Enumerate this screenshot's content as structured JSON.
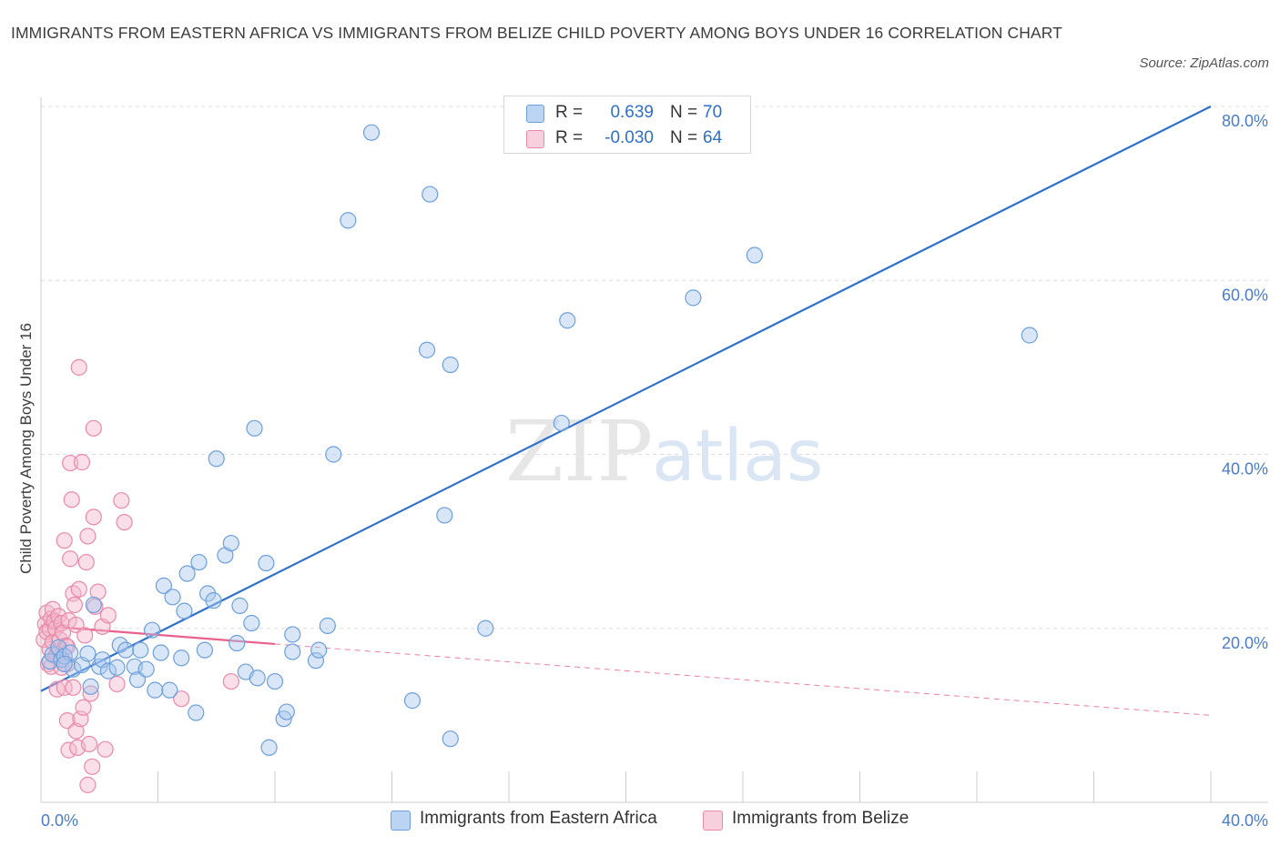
{
  "title": "IMMIGRANTS FROM EASTERN AFRICA VS IMMIGRANTS FROM BELIZE CHILD POVERTY AMONG BOYS UNDER 16 CORRELATION CHART",
  "source": "Source: ZipAtlas.com",
  "watermark": {
    "zip": "ZIP",
    "atlas": "atlas"
  },
  "legend": {
    "series1": {
      "r_label": "R =",
      "r_value": "0.639",
      "n_label": "N =",
      "n_value": "70"
    },
    "series2": {
      "r_label": "R =",
      "r_value": "-0.030",
      "n_label": "N =",
      "n_value": "64"
    }
  },
  "colors": {
    "blue_fill": "#a9c8f0",
    "blue_stroke": "#6e9fd9",
    "blue_line": "#2f72cc",
    "pink_fill": "#f5b8cb",
    "pink_stroke": "#e88aa7",
    "pink_line": "#e8608b",
    "grid": "#d9dde5",
    "axis": "#cccccc"
  },
  "chart_data": {
    "type": "scatter",
    "title": "IMMIGRANTS FROM EASTERN AFRICA VS IMMIGRANTS FROM BELIZE CHILD POVERTY AMONG BOYS UNDER 16 CORRELATION CHART",
    "xlabel": "",
    "ylabel": "Child Poverty Among Boys Under 16",
    "xlim": [
      0,
      40
    ],
    "ylim": [
      0,
      80
    ],
    "x_tick_labels": [
      "0.0%",
      "40.0%"
    ],
    "y_ticks": [
      20,
      40,
      60,
      80
    ],
    "y_tick_labels": [
      "20.0%",
      "40.0%",
      "60.0%",
      "80.0%"
    ],
    "grid": true,
    "legend_position": "bottom-center",
    "series": [
      {
        "name": "Immigrants from Eastern Africa",
        "color": "#a9c8f0",
        "r": 0.639,
        "n": 70,
        "trend": {
          "x": [
            0,
            40
          ],
          "y": [
            12.8,
            80.0
          ],
          "dashed_extension": false
        },
        "points": [
          [
            0.3,
            16.2
          ],
          [
            0.4,
            17.0
          ],
          [
            0.6,
            17.8
          ],
          [
            0.7,
            16.4
          ],
          [
            0.8,
            16.8
          ],
          [
            1.0,
            17.2
          ],
          [
            1.1,
            15.3
          ],
          [
            1.4,
            15.8
          ],
          [
            1.6,
            17.1
          ],
          [
            1.7,
            13.3
          ],
          [
            1.8,
            22.7
          ],
          [
            2.0,
            15.6
          ],
          [
            2.1,
            16.4
          ],
          [
            2.3,
            15.1
          ],
          [
            2.6,
            15.5
          ],
          [
            2.7,
            18.1
          ],
          [
            2.9,
            17.5
          ],
          [
            3.2,
            15.6
          ],
          [
            3.3,
            14.1
          ],
          [
            3.4,
            17.5
          ],
          [
            3.6,
            15.3
          ],
          [
            3.8,
            19.8
          ],
          [
            3.9,
            12.9
          ],
          [
            4.1,
            17.2
          ],
          [
            4.2,
            24.9
          ],
          [
            4.4,
            12.9
          ],
          [
            4.5,
            23.6
          ],
          [
            4.8,
            16.6
          ],
          [
            4.9,
            22.0
          ],
          [
            5.0,
            26.3
          ],
          [
            5.3,
            10.3
          ],
          [
            5.4,
            27.6
          ],
          [
            5.6,
            17.5
          ],
          [
            5.7,
            24.0
          ],
          [
            5.9,
            23.2
          ],
          [
            6.0,
            39.5
          ],
          [
            6.3,
            28.4
          ],
          [
            6.5,
            29.8
          ],
          [
            6.7,
            18.3
          ],
          [
            6.8,
            22.6
          ],
          [
            7.0,
            15.0
          ],
          [
            7.2,
            20.6
          ],
          [
            7.3,
            43.0
          ],
          [
            7.4,
            14.3
          ],
          [
            7.7,
            27.5
          ],
          [
            7.8,
            6.3
          ],
          [
            8.0,
            13.9
          ],
          [
            8.3,
            9.6
          ],
          [
            8.4,
            10.4
          ],
          [
            8.6,
            17.3
          ],
          [
            8.6,
            19.3
          ],
          [
            9.4,
            16.3
          ],
          [
            9.5,
            17.5
          ],
          [
            9.8,
            20.3
          ],
          [
            10.0,
            40.0
          ],
          [
            10.5,
            66.9
          ],
          [
            11.3,
            77.0
          ],
          [
            12.7,
            11.7
          ],
          [
            13.2,
            52.0
          ],
          [
            13.3,
            69.9
          ],
          [
            14.0,
            50.3
          ],
          [
            14.0,
            7.3
          ],
          [
            13.8,
            33.0
          ],
          [
            15.2,
            20.0
          ],
          [
            17.8,
            43.6
          ],
          [
            18.0,
            55.4
          ],
          [
            22.3,
            58.0
          ],
          [
            24.4,
            62.9
          ],
          [
            33.8,
            53.7
          ],
          [
            0.8,
            15.9
          ]
        ]
      },
      {
        "name": "Immigrants from Belize",
        "color": "#f5b8cb",
        "r": -0.03,
        "n": 64,
        "trend": {
          "x": [
            0,
            8.0
          ],
          "y": [
            20.3,
            18.2
          ],
          "dashed_extension": {
            "x": [
              8.0,
              40
            ],
            "y": [
              18.2,
              10.0
            ]
          }
        },
        "points": [
          [
            0.1,
            18.7
          ],
          [
            0.15,
            20.5
          ],
          [
            0.2,
            19.6
          ],
          [
            0.2,
            21.8
          ],
          [
            0.25,
            15.9
          ],
          [
            0.3,
            17.6
          ],
          [
            0.3,
            19.9
          ],
          [
            0.35,
            21.1
          ],
          [
            0.4,
            18.4
          ],
          [
            0.4,
            22.2
          ],
          [
            0.45,
            20.8
          ],
          [
            0.5,
            16.8
          ],
          [
            0.5,
            20.0
          ],
          [
            0.55,
            13.0
          ],
          [
            0.6,
            21.4
          ],
          [
            0.6,
            17.4
          ],
          [
            0.65,
            18.7
          ],
          [
            0.7,
            16.6
          ],
          [
            0.7,
            20.6
          ],
          [
            0.75,
            19.5
          ],
          [
            0.8,
            13.2
          ],
          [
            0.8,
            30.1
          ],
          [
            0.85,
            18.0
          ],
          [
            0.9,
            15.9
          ],
          [
            0.9,
            9.4
          ],
          [
            0.95,
            20.9
          ],
          [
            0.95,
            6.0
          ],
          [
            1.0,
            28.0
          ],
          [
            1.0,
            39.0
          ],
          [
            1.05,
            34.8
          ],
          [
            1.1,
            13.2
          ],
          [
            1.1,
            24.0
          ],
          [
            1.15,
            22.7
          ],
          [
            1.2,
            8.2
          ],
          [
            1.2,
            20.4
          ],
          [
            1.25,
            6.3
          ],
          [
            1.3,
            24.5
          ],
          [
            1.3,
            50.0
          ],
          [
            1.35,
            9.6
          ],
          [
            1.4,
            39.1
          ],
          [
            1.45,
            10.9
          ],
          [
            1.5,
            19.2
          ],
          [
            1.55,
            27.6
          ],
          [
            1.6,
            30.6
          ],
          [
            1.6,
            2.0
          ],
          [
            1.65,
            6.7
          ],
          [
            1.7,
            12.5
          ],
          [
            1.75,
            4.1
          ],
          [
            1.8,
            32.8
          ],
          [
            1.8,
            43.0
          ],
          [
            1.85,
            22.5
          ],
          [
            1.95,
            24.2
          ],
          [
            2.1,
            20.2
          ],
          [
            2.2,
            6.1
          ],
          [
            2.3,
            21.5
          ],
          [
            2.6,
            13.6
          ],
          [
            2.75,
            34.7
          ],
          [
            2.85,
            32.2
          ],
          [
            4.8,
            11.9
          ],
          [
            6.5,
            13.9
          ],
          [
            0.35,
            15.6
          ],
          [
            0.55,
            17.0
          ],
          [
            0.7,
            15.5
          ],
          [
            0.9,
            17.9
          ]
        ]
      }
    ]
  },
  "bottom_legend": [
    "Immigrants from Eastern Africa",
    "Immigrants from Belize"
  ]
}
